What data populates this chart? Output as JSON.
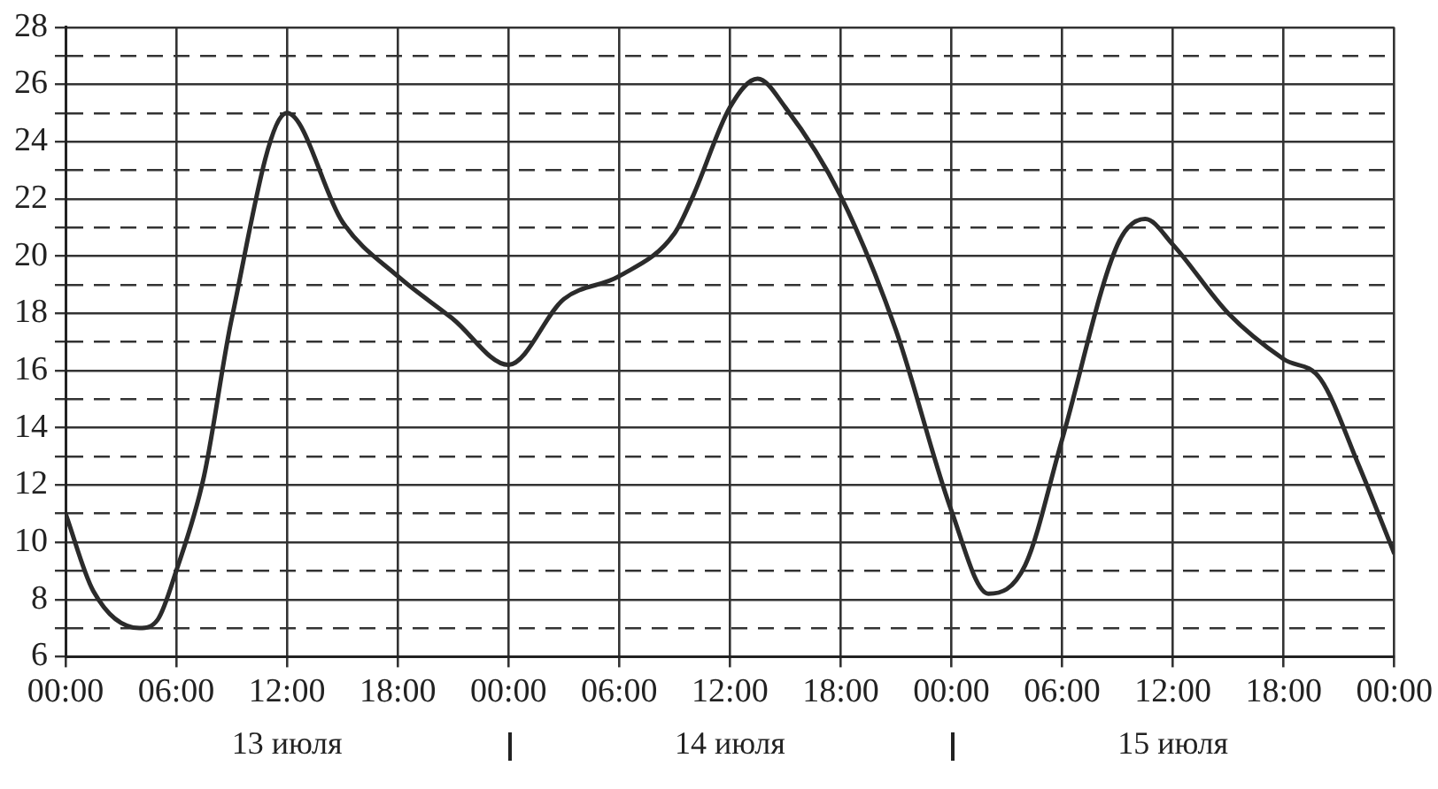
{
  "chart_data": {
    "type": "line",
    "x": [
      "--07-13T00:00",
      "--07-13T01:30",
      "--07-13T04:00",
      "--07-13T05:00",
      "--07-13T06:00",
      "--07-13T07:30",
      "--07-13T09:00",
      "--07-13T12:00",
      "--07-13T15:00",
      "--07-13T18:00",
      "--07-13T21:00",
      "--07-14T00:00",
      "--07-14T03:00",
      "--07-14T06:00",
      "--07-14T09:00",
      "--07-14T10:00",
      "--07-14T12:00",
      "--07-14T13:30",
      "--07-14T15:00",
      "--07-14T18:00",
      "--07-14T21:00",
      "--07-15T00:00",
      "--07-15T02:00",
      "--07-15T04:00",
      "--07-15T06:00",
      "--07-15T09:00",
      "--07-15T10:30",
      "--07-15T12:00",
      "--07-15T15:00",
      "--07-15T18:00",
      "--07-15T20:00",
      "--07-15T22:00",
      "--07-16T00:00"
    ],
    "series": [
      {
        "color": "#2b2b2b",
        "values": [
          11,
          8.3,
          7,
          7.3,
          9,
          12.3,
          17.8,
          25,
          21.2,
          19.3,
          17.8,
          16.2,
          18.5,
          19.3,
          20.8,
          22.1,
          25.2,
          26.2,
          25.2,
          22.1,
          17.4,
          11.1,
          8.2,
          9.2,
          13.6,
          20.4,
          21.3,
          20.4,
          18,
          16.4,
          15.7,
          12.8,
          9.6
        ]
      }
    ],
    "xlim": [
      "--07-13T00:00",
      "--07-16T00:00"
    ],
    "xticks": [
      {
        "value": "--07-13T00:00",
        "label": "00:00"
      },
      {
        "value": "--07-13T06:00",
        "label": "06:00"
      },
      {
        "value": "--07-13T12:00",
        "label": "12:00"
      },
      {
        "value": "--07-13T18:00",
        "label": "18:00"
      },
      {
        "value": "--07-14T00:00",
        "label": "00:00"
      },
      {
        "value": "--07-14T06:00",
        "label": "06:00"
      },
      {
        "value": "--07-14T12:00",
        "label": "12:00"
      },
      {
        "value": "--07-14T18:00",
        "label": "18:00"
      },
      {
        "value": "--07-15T00:00",
        "label": "00:00"
      },
      {
        "value": "--07-15T06:00",
        "label": "06:00"
      },
      {
        "value": "--07-15T12:00",
        "label": "12:00"
      },
      {
        "value": "--07-15T18:00",
        "label": "18:00"
      },
      {
        "value": "--07-16T00:00",
        "label": "00:00"
      }
    ],
    "ylim": [
      6,
      28
    ],
    "yticks": [
      6,
      {
        "value": 7,
        "label": null
      },
      8,
      {
        "value": 9,
        "label": null
      },
      10,
      {
        "value": 11,
        "label": null
      },
      12,
      {
        "value": 13,
        "label": null
      },
      14,
      {
        "value": 15,
        "label": null
      },
      16,
      {
        "value": 17,
        "label": null
      },
      18,
      {
        "value": 19,
        "label": null
      },
      20,
      {
        "value": 21,
        "label": null
      },
      22,
      {
        "value": 23,
        "label": null
      },
      24,
      {
        "value": 25,
        "label": null
      },
      26,
      {
        "value": 27,
        "label": null
      },
      28
    ],
    "grid": true,
    "marker": "none",
    "line_style": "solid",
    "legend": false,
    "annotations": [
      "13 июля",
      "14 июля",
      "15 июля"
    ]
  }
}
